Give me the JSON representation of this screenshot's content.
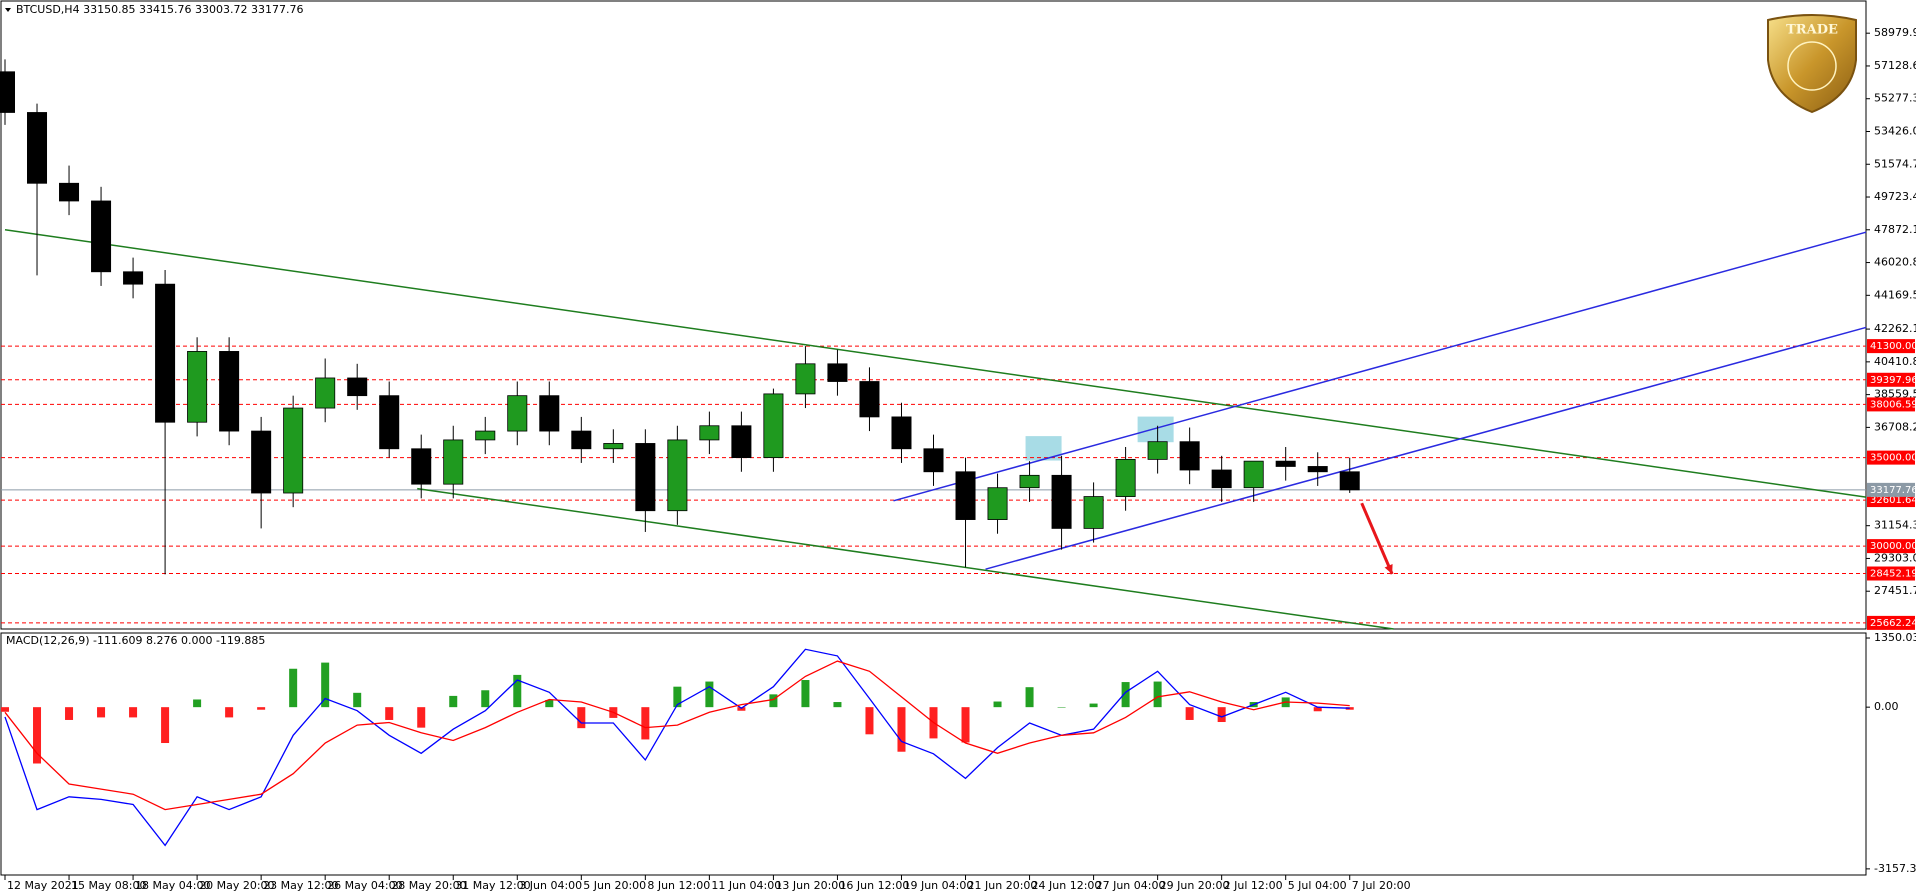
{
  "chart_data": [
    {
      "type": "candlestick",
      "title": "BTCUSD,H4  33150.85 33415.76 33003.72 33177.76",
      "up_color": "#1f9a1f",
      "down_color": "#000000",
      "xlim": [
        -1,
        465
      ],
      "ylim": [
        25317,
        60290
      ],
      "x": [
        0,
        8,
        16,
        24,
        32,
        40,
        48,
        56,
        64,
        72,
        80,
        88,
        96,
        104,
        112,
        120,
        128,
        136,
        144,
        152,
        160,
        168,
        176,
        184,
        192,
        200,
        208,
        216,
        224,
        232,
        240,
        248,
        256,
        264,
        272,
        280,
        288,
        296,
        304,
        312,
        320,
        328,
        336
      ],
      "open": [
        56800,
        54500,
        50500,
        49500,
        45500,
        44800,
        37000,
        41000,
        36500,
        33000,
        37800,
        39500,
        38500,
        35500,
        33500,
        36000,
        36500,
        38500,
        36500,
        35500,
        35800,
        32000,
        36000,
        36800,
        35000,
        38600,
        40300,
        39300,
        37300,
        35500,
        34200,
        31500,
        33300,
        34000,
        31000,
        32800,
        34900,
        35900,
        34300,
        33300,
        34800,
        34500,
        34200
      ],
      "high": [
        57500,
        55000,
        51500,
        50300,
        46300,
        45600,
        41800,
        41800,
        37300,
        38500,
        40600,
        40300,
        39300,
        36300,
        36800,
        37300,
        39300,
        39300,
        37300,
        36600,
        36600,
        36800,
        37600,
        37600,
        38900,
        41300,
        41100,
        40100,
        38100,
        36300,
        35000,
        34100,
        34800,
        35100,
        33600,
        35600,
        36800,
        36700,
        35100,
        34800,
        35600,
        35300,
        35000
      ],
      "low": [
        53800,
        45300,
        48700,
        44700,
        44000,
        28400,
        36200,
        35700,
        31000,
        32200,
        37000,
        37700,
        35000,
        32700,
        32700,
        35200,
        35700,
        35700,
        34700,
        34700,
        30800,
        31200,
        35200,
        34200,
        34200,
        37800,
        38500,
        36500,
        34700,
        33400,
        28800,
        30700,
        32500,
        29800,
        30200,
        32000,
        34100,
        33500,
        32500,
        32500,
        33700,
        33400,
        33003.72
      ],
      "close": [
        54500,
        50500,
        49500,
        45500,
        44800,
        37000,
        41000,
        36500,
        33000,
        37800,
        39500,
        38500,
        35500,
        33500,
        36000,
        36500,
        38500,
        36500,
        35500,
        35800,
        32000,
        36000,
        36800,
        35000,
        38600,
        40300,
        39300,
        37300,
        35500,
        34200,
        31500,
        33300,
        34000,
        31000,
        32800,
        34900,
        35900,
        34300,
        33300,
        34800,
        34500,
        34200,
        33177.76
      ],
      "yticks": [
        {
          "value": 58979.9,
          "label": "58979.90"
        },
        {
          "value": 57128.6,
          "label": "57128.60"
        },
        {
          "value": 55277.3,
          "label": "55277.30"
        },
        {
          "value": 53426,
          "label": "53426.00"
        },
        {
          "value": 51574.7,
          "label": "51574.70"
        },
        {
          "value": 49723.4,
          "label": "49723.40"
        },
        {
          "value": 47872.1,
          "label": "47872.10"
        },
        {
          "value": 46020.8,
          "label": "46020.80"
        },
        {
          "value": 44169.5,
          "label": "44169.50"
        },
        {
          "value": 42262.1,
          "label": "42262.10"
        },
        {
          "value": 40410.8,
          "label": "40410.80"
        },
        {
          "value": 38559.5,
          "label": "38559.50"
        },
        {
          "value": 36708.2,
          "label": "36708.20"
        },
        {
          "value": 31154.3,
          "label": "31154.30"
        },
        {
          "value": 29303,
          "label": "29303.00"
        },
        {
          "value": 27451.7,
          "label": "27451.70"
        }
      ],
      "xticks": [
        {
          "value": 0,
          "label": "12 May 2021"
        },
        {
          "value": 16,
          "label": "15 May 08:00"
        },
        {
          "value": 32,
          "label": "18 May 04:00"
        },
        {
          "value": 48,
          "label": "20 May 20:00"
        },
        {
          "value": 64,
          "label": "23 May 12:00"
        },
        {
          "value": 80,
          "label": "26 May 04:00"
        },
        {
          "value": 96,
          "label": "28 May 20:00"
        },
        {
          "value": 112,
          "label": "31 May 12:00"
        },
        {
          "value": 128,
          "label": "3 Jun 04:00"
        },
        {
          "value": 144,
          "label": "5 Jun 20:00"
        },
        {
          "value": 160,
          "label": "8 Jun 12:00"
        },
        {
          "value": 176,
          "label": "11 Jun 04:00"
        },
        {
          "value": 192,
          "label": "13 Jun 20:00"
        },
        {
          "value": 208,
          "label": "16 Jun 12:00"
        },
        {
          "value": 224,
          "label": "19 Jun 04:00"
        },
        {
          "value": 240,
          "label": "21 Jun 20:00"
        },
        {
          "value": 256,
          "label": "24 Jun 12:00"
        },
        {
          "value": 272,
          "label": "27 Jun 04:00"
        },
        {
          "value": 288,
          "label": "29 Jun 20:00"
        },
        {
          "value": 304,
          "label": "2 Jul 12:00"
        },
        {
          "value": 320,
          "label": "5 Jul 04:00"
        },
        {
          "value": 336,
          "label": "7 Jul 20:00"
        }
      ],
      "level_color": "#ff0000",
      "levels": [
        {
          "value": 41300,
          "label": "41300.00"
        },
        {
          "value": 39397.96,
          "label": "39397.96"
        },
        {
          "value": 38006.59,
          "label": "38006.59"
        },
        {
          "value": 35000,
          "label": "35000.00"
        },
        {
          "value": 32601.64,
          "label": "32601.64"
        },
        {
          "value": 30000,
          "label": "30000.00"
        },
        {
          "value": 28452.19,
          "label": "28452.19"
        },
        {
          "value": 25662.24,
          "label": "25662.24"
        }
      ],
      "current_price": 33177.76,
      "current_color": "#8c9aa6",
      "trendlines": [
        {
          "color": "#1e7d1e",
          "x": [
            0,
            465
          ],
          "y": [
            47874,
            32767
          ]
        },
        {
          "color": "#1e7d1e",
          "x": [
            103,
            347
          ],
          "y": [
            33250,
            25317
          ]
        },
        {
          "color": "#2a2ae0",
          "x": [
            222,
            465
          ],
          "y": [
            32560,
            47736
          ]
        },
        {
          "color": "#2a2ae0",
          "x": [
            245,
            465
          ],
          "y": [
            28697,
            42356
          ]
        }
      ],
      "zones": [
        {
          "color": "#a8dce6",
          "x": [
            255,
            264
          ],
          "y": [
            34835,
            36215
          ]
        },
        {
          "color": "#a8dce6",
          "x": [
            283,
            292
          ],
          "y": [
            35870,
            37319
          ]
        }
      ],
      "arrow": {
        "color": "#e8161b",
        "x": [
          339,
          346.6
        ],
        "y": [
          32425,
          28424
        ]
      },
      "logo_text": "TRADE"
    },
    {
      "type": "macd",
      "title": "MACD(12,26,9) -111.609 8.276 0.000 -119.885",
      "xlim": [
        -1,
        465
      ],
      "ylim": [
        -3277,
        1448
      ],
      "yticks": [
        1350.032,
        {
          "value": 0,
          "label": "0.00"
        },
        -3157.344
      ],
      "x": [
        0,
        8,
        16,
        24,
        32,
        40,
        48,
        56,
        64,
        72,
        80,
        88,
        96,
        104,
        112,
        120,
        128,
        136,
        144,
        152,
        160,
        168,
        176,
        184,
        192,
        200,
        208,
        216,
        224,
        232,
        240,
        248,
        256,
        264,
        272,
        280,
        288,
        296,
        304,
        312,
        320,
        328,
        336
      ],
      "hist_colors": {
        "positive": "#22a022",
        "negative": "#ff2020"
      },
      "histogram": [
        -90,
        -1100,
        -250,
        -200,
        -200,
        -700,
        150,
        -200,
        -50,
        750,
        870,
        280,
        -250,
        -400,
        220,
        330,
        630,
        140,
        -410,
        -210,
        -630,
        400,
        500,
        -70,
        250,
        530,
        100,
        -530,
        -870,
        -610,
        -690,
        110,
        390,
        0,
        70,
        490,
        500,
        -250,
        -290,
        100,
        190,
        -80,
        -50
      ],
      "series": [
        {
          "color": "#0000ff",
          "values": [
            -190,
            -2000,
            -1750,
            -1800,
            -1900,
            -2700,
            -1750,
            -2000,
            -1750,
            -550,
            170,
            -70,
            -550,
            -900,
            -430,
            -70,
            530,
            290,
            -310,
            -310,
            -1030,
            50,
            400,
            -20,
            400,
            1130,
            1000,
            170,
            -670,
            -910,
            -1390,
            -790,
            -310,
            -550,
            -430,
            290,
            700,
            50,
            -190,
            50,
            290,
            0,
            -20
          ]
        },
        {
          "color": "#ff0000",
          "values": [
            -100,
            -900,
            -1500,
            -1600,
            -1700,
            -2000,
            -1900,
            -1800,
            -1700,
            -1300,
            -700,
            -350,
            -300,
            -500,
            -650,
            -400,
            -100,
            150,
            100,
            -100,
            -400,
            -350,
            -100,
            50,
            150,
            600,
            900,
            700,
            200,
            -300,
            -700,
            -900,
            -700,
            -550,
            -500,
            -200,
            200,
            300,
            100,
            -50,
            100,
            80,
            30
          ]
        }
      ]
    }
  ]
}
